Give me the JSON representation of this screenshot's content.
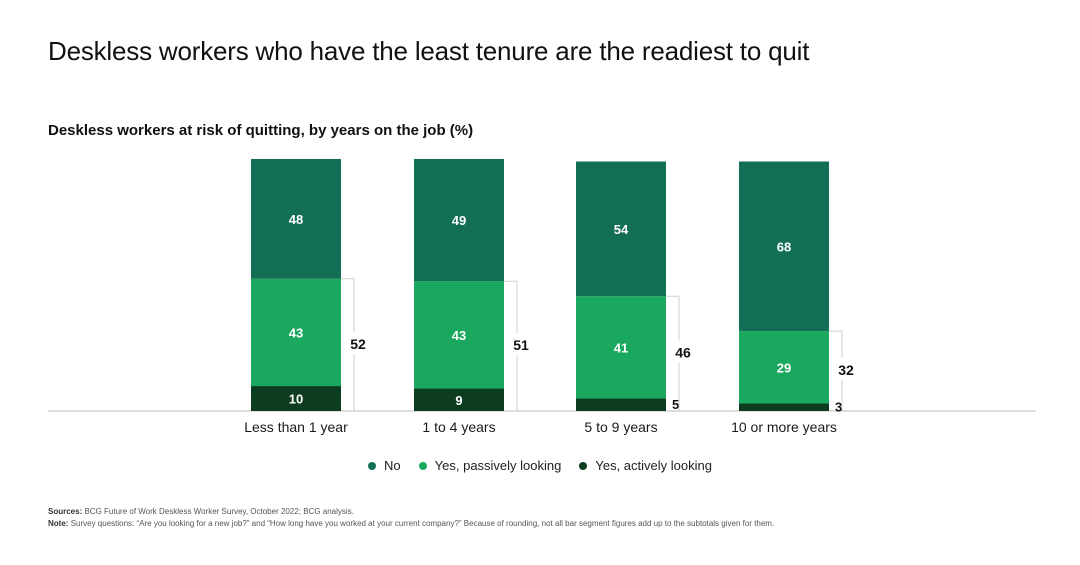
{
  "title": "Deskless workers who have the least tenure are the readiest to quit",
  "subtitle": "Deskless workers at risk of quitting, by years on the job (%)",
  "colors": {
    "no": "#136e56",
    "passive": "#19a85d",
    "active": "#0c3d20"
  },
  "chart_data": {
    "type": "bar",
    "stacked": true,
    "categories": [
      "Less than 1 year",
      "1 to 4 years",
      "5 to 9 years",
      "10 or more years"
    ],
    "series": [
      {
        "name": "Yes, actively looking",
        "values": [
          10,
          9,
          5,
          3
        ]
      },
      {
        "name": "Yes, passively looking",
        "values": [
          43,
          43,
          41,
          29
        ]
      },
      {
        "name": "No",
        "values": [
          48,
          49,
          54,
          68
        ]
      }
    ],
    "subtotals": [
      52,
      51,
      46,
      32
    ],
    "ylim": [
      0,
      100
    ]
  },
  "legend": [
    {
      "label": "No",
      "color": "#136e56"
    },
    {
      "label": "Yes, passively looking",
      "color": "#19a85d"
    },
    {
      "label": "Yes, actively looking",
      "color": "#0c3d20"
    }
  ],
  "footer": {
    "sources_label": "Sources:",
    "sources_text": "BCG Future of Work Deskless Worker Survey, October 2022; BCG analysis.",
    "note_label": "Note:",
    "note_text": "Survey questions: “Are you looking for a new job?” and “How long have you worked at your current company?” Because of rounding, not all bar segment figures add up to the subtotals given for them."
  }
}
